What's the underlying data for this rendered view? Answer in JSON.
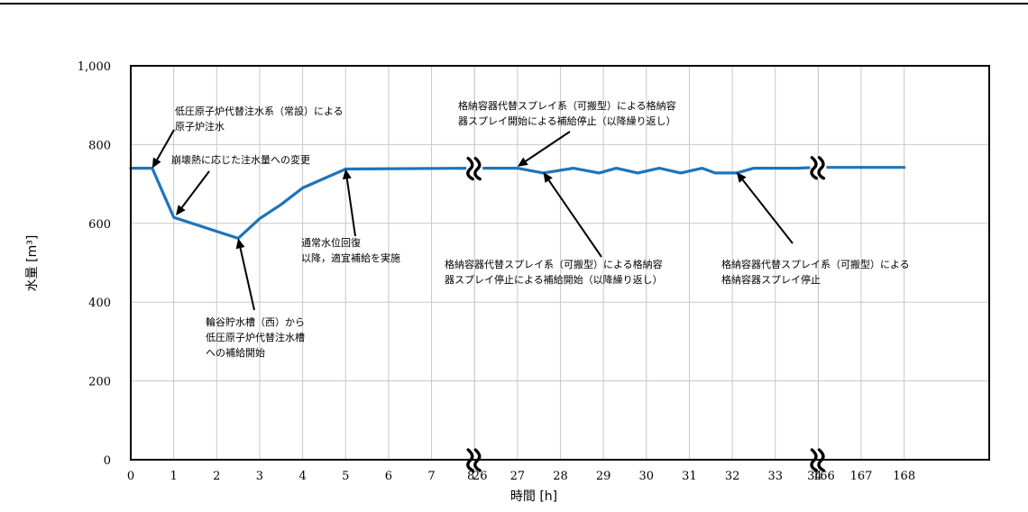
{
  "chart_data": {
    "type": "line",
    "title": "",
    "xlabel": "時間 [h]",
    "ylabel": "水量 [m³]",
    "ylim": [
      0,
      1000
    ],
    "yticks": [
      "0",
      "200",
      "400",
      "600",
      "800",
      "1,000"
    ],
    "xticks": [
      "0",
      "1",
      "2",
      "3",
      "4",
      "5",
      "6",
      "7",
      "8",
      "26",
      "27",
      "28",
      "29",
      "30",
      "31",
      "32",
      "33",
      "34",
      "166",
      "167",
      "168"
    ],
    "x_segments": [
      [
        0,
        8
      ],
      [
        26,
        34
      ],
      [
        166,
        168
      ]
    ],
    "grid": true,
    "series": [
      {
        "x": [
          0,
          0.5,
          1,
          2.5,
          3,
          3.5,
          4,
          4.5,
          5,
          8,
          26,
          27,
          27.6,
          28.3,
          28.9,
          29.3,
          29.8,
          30.3,
          30.8,
          31.3,
          31.6,
          32.1,
          32.5,
          33.5,
          34,
          166,
          167,
          168
        ],
        "y": [
          740,
          740,
          615,
          562,
          612,
          648,
          690,
          714,
          738,
          740,
          740,
          740,
          728,
          740,
          728,
          740,
          728,
          740,
          728,
          740,
          728,
          728,
          740,
          740,
          742,
          742,
          742,
          742
        ]
      }
    ],
    "annotations": [
      {
        "lines": [
          "低圧原子炉代替注水系（常設）による",
          "原子炉注水"
        ]
      },
      {
        "lines": [
          "崩壊熱に応じた注水量への変更"
        ]
      },
      {
        "lines": [
          "輪谷貯水槽（西）から",
          "低圧原子炉代替注水槽",
          "への補給開始"
        ]
      },
      {
        "lines": [
          "通常水位回復",
          "以降，適宜補給を実施"
        ]
      },
      {
        "lines": [
          "格納容器代替スプレイ系（可搬型）による格納容",
          "器スプレイ開始による補給停止（以降繰り返し）"
        ]
      },
      {
        "lines": [
          "格納容器代替スプレイ系（可搬型）による格納容",
          "器スプレイ停止による補給開始（以降繰り返し）"
        ]
      },
      {
        "lines": [
          "格納容器代替スプレイ系（可搬型）による",
          "格納容器スプレイ停止"
        ]
      }
    ],
    "colors": {
      "series": "#1f74b8",
      "grid": "#c8c8c8",
      "frame": "#000000"
    }
  }
}
